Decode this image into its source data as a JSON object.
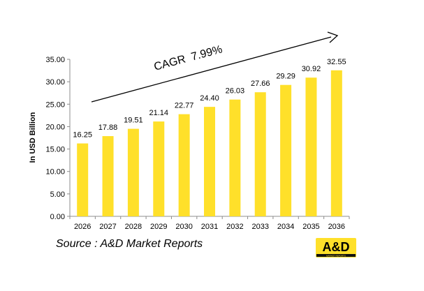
{
  "chart_data": {
    "type": "bar",
    "categories": [
      "2026",
      "2027",
      "2028",
      "2029",
      "2030",
      "2031",
      "2032",
      "2033",
      "2034",
      "2035",
      "2036"
    ],
    "values": [
      16.25,
      17.88,
      19.51,
      21.14,
      22.77,
      24.4,
      26.03,
      27.66,
      29.29,
      30.92,
      32.55
    ],
    "value_labels": [
      "16.25",
      "17.88",
      "19.51",
      "21.14",
      "22.77",
      "24.40",
      "26.03",
      "27.66",
      "29.29",
      "30.92",
      "32.55"
    ],
    "ylabel": "In USD Billion",
    "ylim": [
      0,
      35
    ],
    "y_ticks": [
      "0.00",
      "5.00",
      "10.00",
      "15.00",
      "20.00",
      "25.00",
      "30.00",
      "35.00"
    ],
    "y_tick_values": [
      0,
      5,
      10,
      15,
      20,
      25,
      30,
      35
    ],
    "grid": false,
    "bar_color": "#FFE02A",
    "annotation": "CAGR  7.99%"
  },
  "source": "Source : A&D Market Reports",
  "logo": {
    "text": "A&D",
    "subtext": "MARKET REPORTS",
    "color": "#FFE02A"
  }
}
